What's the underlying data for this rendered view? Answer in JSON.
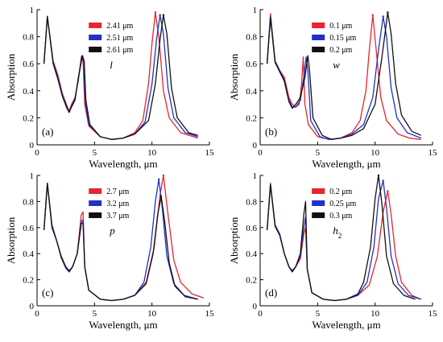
{
  "chart_data": [
    {
      "type": "line",
      "panel_label": "(a)",
      "param_symbol": "l",
      "param_sub": "",
      "xlabel": "Wavelength, μm",
      "ylabel": "Absorption",
      "xlim": [
        0,
        15
      ],
      "ylim": [
        0,
        1
      ],
      "xticks": [
        "0",
        "5",
        "10",
        "15"
      ],
      "yticks": [
        "0",
        "0.2",
        "0.4",
        "0.6",
        "0.8",
        "1"
      ],
      "legend_position": "upper-middle",
      "series": [
        {
          "name": "2.41 μm",
          "color": "#e8242c",
          "peak_x": 10.3,
          "peak_y": 0.98,
          "x": [
            0.6,
            0.9,
            1.4,
            1.8,
            2.2,
            2.6,
            2.8,
            3.0,
            3.3,
            3.6,
            3.85,
            4.0,
            4.15,
            4.5,
            5.5,
            6.5,
            7.5,
            8.5,
            9.2,
            9.7,
            10.0,
            10.3,
            10.6,
            11.0,
            11.5,
            12.5,
            14.0
          ],
          "y": [
            0.6,
            0.95,
            0.62,
            0.52,
            0.38,
            0.29,
            0.25,
            0.3,
            0.35,
            0.48,
            0.65,
            0.62,
            0.3,
            0.14,
            0.06,
            0.04,
            0.05,
            0.09,
            0.18,
            0.45,
            0.75,
            0.98,
            0.8,
            0.4,
            0.2,
            0.09,
            0.05
          ]
        },
        {
          "name": "2.51 μm",
          "color": "#2130c8",
          "peak_x": 10.7,
          "peak_y": 0.96,
          "x": [
            0.6,
            0.9,
            1.4,
            1.8,
            2.2,
            2.6,
            2.8,
            3.0,
            3.3,
            3.6,
            3.9,
            4.05,
            4.2,
            4.5,
            5.5,
            6.5,
            7.5,
            8.5,
            9.4,
            10.0,
            10.4,
            10.7,
            11.0,
            11.4,
            11.9,
            12.9,
            14.0
          ],
          "y": [
            0.6,
            0.95,
            0.61,
            0.5,
            0.37,
            0.28,
            0.24,
            0.29,
            0.34,
            0.5,
            0.66,
            0.62,
            0.32,
            0.15,
            0.06,
            0.04,
            0.05,
            0.08,
            0.17,
            0.45,
            0.78,
            0.96,
            0.82,
            0.42,
            0.2,
            0.09,
            0.06
          ]
        },
        {
          "name": "2.61 μm",
          "color": "#111111",
          "peak_x": 11.0,
          "peak_y": 0.96,
          "x": [
            0.6,
            0.9,
            1.4,
            1.8,
            2.2,
            2.6,
            2.8,
            3.0,
            3.3,
            3.6,
            3.95,
            4.1,
            4.25,
            4.6,
            5.5,
            6.5,
            7.5,
            8.5,
            9.7,
            10.3,
            10.7,
            11.0,
            11.3,
            11.7,
            12.2,
            13.2,
            14.0
          ],
          "y": [
            0.6,
            0.95,
            0.6,
            0.49,
            0.36,
            0.27,
            0.24,
            0.28,
            0.33,
            0.5,
            0.66,
            0.62,
            0.33,
            0.15,
            0.06,
            0.04,
            0.05,
            0.08,
            0.18,
            0.45,
            0.78,
            0.96,
            0.82,
            0.42,
            0.2,
            0.09,
            0.07
          ]
        }
      ]
    },
    {
      "type": "line",
      "panel_label": "(b)",
      "param_symbol": "w",
      "param_sub": "",
      "xlabel": "Wavelength, μm",
      "ylabel": "Absorption",
      "xlim": [
        0,
        15
      ],
      "ylim": [
        0,
        1
      ],
      "xticks": [
        "0",
        "5",
        "10",
        "15"
      ],
      "yticks": [
        "0",
        "0.2",
        "0.4",
        "0.6",
        "0.8",
        "1"
      ],
      "legend_position": "upper-middle",
      "series": [
        {
          "name": "0.1 μm",
          "color": "#e8242c",
          "peak_x": 9.8,
          "peak_y": 0.96,
          "x": [
            0.6,
            0.9,
            1.3,
            1.7,
            2.1,
            2.5,
            2.8,
            3.1,
            3.4,
            3.6,
            3.75,
            3.9,
            4.2,
            5.0,
            6.0,
            7.0,
            8.0,
            8.7,
            9.2,
            9.5,
            9.8,
            10.1,
            10.5,
            11.0,
            12.0,
            13.0,
            14.0
          ],
          "y": [
            0.6,
            0.97,
            0.62,
            0.55,
            0.5,
            0.35,
            0.3,
            0.28,
            0.3,
            0.45,
            0.65,
            0.3,
            0.15,
            0.06,
            0.04,
            0.05,
            0.09,
            0.18,
            0.4,
            0.7,
            0.96,
            0.7,
            0.35,
            0.18,
            0.08,
            0.05,
            0.04
          ]
        },
        {
          "name": "0.15 μm",
          "color": "#2130c8",
          "peak_x": 10.7,
          "peak_y": 0.95,
          "x": [
            0.6,
            0.9,
            1.3,
            1.7,
            2.1,
            2.5,
            2.8,
            3.1,
            3.5,
            3.8,
            4.0,
            4.15,
            4.4,
            5.2,
            6.0,
            7.0,
            8.0,
            9.0,
            9.8,
            10.3,
            10.7,
            11.0,
            11.4,
            11.9,
            12.8,
            14.0
          ],
          "y": [
            0.6,
            0.95,
            0.62,
            0.55,
            0.48,
            0.33,
            0.28,
            0.28,
            0.33,
            0.5,
            0.65,
            0.55,
            0.18,
            0.06,
            0.04,
            0.05,
            0.08,
            0.15,
            0.35,
            0.7,
            0.95,
            0.8,
            0.42,
            0.2,
            0.09,
            0.05
          ]
        },
        {
          "name": "0.2 μm",
          "color": "#111111",
          "peak_x": 11.1,
          "peak_y": 0.98,
          "x": [
            0.6,
            0.9,
            1.3,
            1.7,
            2.1,
            2.5,
            2.8,
            3.1,
            3.5,
            3.9,
            4.15,
            4.3,
            4.6,
            5.4,
            6.2,
            7.0,
            8.0,
            9.0,
            10.0,
            10.6,
            11.1,
            11.4,
            11.8,
            12.3,
            13.2,
            14.0
          ],
          "y": [
            0.6,
            0.94,
            0.61,
            0.54,
            0.47,
            0.32,
            0.27,
            0.3,
            0.35,
            0.5,
            0.66,
            0.55,
            0.2,
            0.07,
            0.04,
            0.05,
            0.07,
            0.12,
            0.3,
            0.65,
            0.98,
            0.82,
            0.45,
            0.22,
            0.1,
            0.07
          ]
        }
      ]
    },
    {
      "type": "line",
      "panel_label": "(c)",
      "param_symbol": "p",
      "param_sub": "",
      "xlabel": "Wavelength, μm",
      "ylabel": "Absorption",
      "xlim": [
        0,
        15
      ],
      "ylim": [
        0,
        1
      ],
      "xticks": [
        "0",
        "5",
        "10",
        "15"
      ],
      "yticks": [
        "0",
        "0.2",
        "0.4",
        "0.6",
        "0.8",
        "1"
      ],
      "legend_position": "upper-middle",
      "series": [
        {
          "name": "2.7 μm",
          "color": "#e8242c",
          "peak_x": 11.0,
          "peak_y": 1.0,
          "x": [
            0.6,
            0.9,
            1.3,
            1.7,
            2.1,
            2.5,
            2.8,
            3.1,
            3.5,
            3.85,
            4.0,
            4.15,
            4.5,
            5.5,
            6.5,
            7.5,
            8.5,
            9.5,
            10.2,
            10.7,
            11.0,
            11.4,
            11.9,
            12.5,
            13.5,
            14.5
          ],
          "y": [
            0.58,
            0.94,
            0.62,
            0.5,
            0.38,
            0.3,
            0.27,
            0.3,
            0.4,
            0.7,
            0.72,
            0.3,
            0.12,
            0.05,
            0.04,
            0.05,
            0.08,
            0.18,
            0.45,
            0.85,
            1.0,
            0.7,
            0.35,
            0.18,
            0.09,
            0.06
          ]
        },
        {
          "name": "3.2 μm",
          "color": "#2130c8",
          "peak_x": 10.6,
          "peak_y": 0.97,
          "x": [
            0.6,
            0.9,
            1.3,
            1.7,
            2.1,
            2.5,
            2.8,
            3.1,
            3.5,
            3.85,
            4.0,
            4.15,
            4.5,
            5.5,
            6.5,
            7.5,
            8.5,
            9.3,
            9.9,
            10.3,
            10.6,
            10.9,
            11.3,
            11.9,
            12.8,
            14.0
          ],
          "y": [
            0.58,
            0.94,
            0.62,
            0.5,
            0.38,
            0.3,
            0.27,
            0.3,
            0.4,
            0.65,
            0.66,
            0.3,
            0.12,
            0.05,
            0.04,
            0.05,
            0.08,
            0.18,
            0.45,
            0.8,
            0.97,
            0.75,
            0.38,
            0.17,
            0.08,
            0.05
          ]
        },
        {
          "name": "3.7 μm",
          "color": "#111111",
          "peak_x": 10.8,
          "peak_y": 0.84,
          "x": [
            0.6,
            0.9,
            1.3,
            1.7,
            2.1,
            2.5,
            2.8,
            3.1,
            3.5,
            3.85,
            4.0,
            4.15,
            4.5,
            5.5,
            6.5,
            7.5,
            8.5,
            9.5,
            10.1,
            10.5,
            10.8,
            11.1,
            11.5,
            12.0,
            12.9,
            14.0
          ],
          "y": [
            0.58,
            0.94,
            0.6,
            0.5,
            0.37,
            0.29,
            0.26,
            0.3,
            0.4,
            0.63,
            0.64,
            0.3,
            0.12,
            0.05,
            0.04,
            0.05,
            0.08,
            0.17,
            0.4,
            0.7,
            0.84,
            0.65,
            0.33,
            0.15,
            0.07,
            0.05
          ]
        }
      ]
    },
    {
      "type": "line",
      "panel_label": "(d)",
      "param_symbol": "h",
      "param_sub": "2",
      "xlabel": "Wavelength, μm",
      "ylabel": "Absorption",
      "xlim": [
        0,
        15
      ],
      "ylim": [
        0,
        1
      ],
      "xticks": [
        "0",
        "5",
        "10",
        "15"
      ],
      "yticks": [
        "0",
        "0.2",
        "0.4",
        "0.6",
        "0.8",
        "1"
      ],
      "legend_position": "upper-middle",
      "series": [
        {
          "name": "0.2 μm",
          "color": "#e8242c",
          "peak_x": 11.1,
          "peak_y": 0.88,
          "x": [
            0.6,
            0.9,
            1.3,
            1.7,
            2.1,
            2.5,
            2.8,
            3.1,
            3.5,
            3.8,
            3.95,
            4.1,
            4.5,
            5.5,
            6.5,
            7.5,
            8.5,
            9.5,
            10.2,
            10.7,
            11.1,
            11.4,
            11.8,
            12.3,
            13.2,
            14.0
          ],
          "y": [
            0.58,
            0.94,
            0.62,
            0.55,
            0.4,
            0.3,
            0.27,
            0.3,
            0.36,
            0.55,
            0.6,
            0.28,
            0.1,
            0.05,
            0.04,
            0.05,
            0.08,
            0.16,
            0.38,
            0.72,
            0.88,
            0.7,
            0.38,
            0.18,
            0.08,
            0.05
          ]
        },
        {
          "name": "0.25 μm",
          "color": "#2130c8",
          "peak_x": 10.7,
          "peak_y": 0.96,
          "x": [
            0.6,
            0.9,
            1.3,
            1.7,
            2.1,
            2.5,
            2.8,
            3.1,
            3.5,
            3.8,
            3.95,
            4.1,
            4.5,
            5.5,
            6.5,
            7.5,
            8.5,
            9.3,
            9.9,
            10.3,
            10.7,
            11.0,
            11.4,
            12.0,
            12.9,
            14.0
          ],
          "y": [
            0.58,
            0.93,
            0.62,
            0.55,
            0.4,
            0.3,
            0.27,
            0.3,
            0.38,
            0.6,
            0.68,
            0.28,
            0.1,
            0.05,
            0.04,
            0.05,
            0.08,
            0.18,
            0.45,
            0.82,
            0.96,
            0.75,
            0.38,
            0.17,
            0.08,
            0.05
          ]
        },
        {
          "name": "0.3 μm",
          "color": "#111111",
          "peak_x": 10.3,
          "peak_y": 1.0,
          "x": [
            0.6,
            0.9,
            1.3,
            1.7,
            2.1,
            2.5,
            2.8,
            3.1,
            3.5,
            3.8,
            3.95,
            4.1,
            4.5,
            5.5,
            6.5,
            7.5,
            8.5,
            9.0,
            9.6,
            10.0,
            10.3,
            10.6,
            11.0,
            11.6,
            12.5,
            13.5
          ],
          "y": [
            0.58,
            0.93,
            0.61,
            0.54,
            0.4,
            0.3,
            0.26,
            0.3,
            0.4,
            0.7,
            0.8,
            0.28,
            0.1,
            0.05,
            0.04,
            0.05,
            0.09,
            0.18,
            0.45,
            0.82,
            1.0,
            0.78,
            0.38,
            0.17,
            0.08,
            0.05
          ]
        }
      ]
    }
  ]
}
